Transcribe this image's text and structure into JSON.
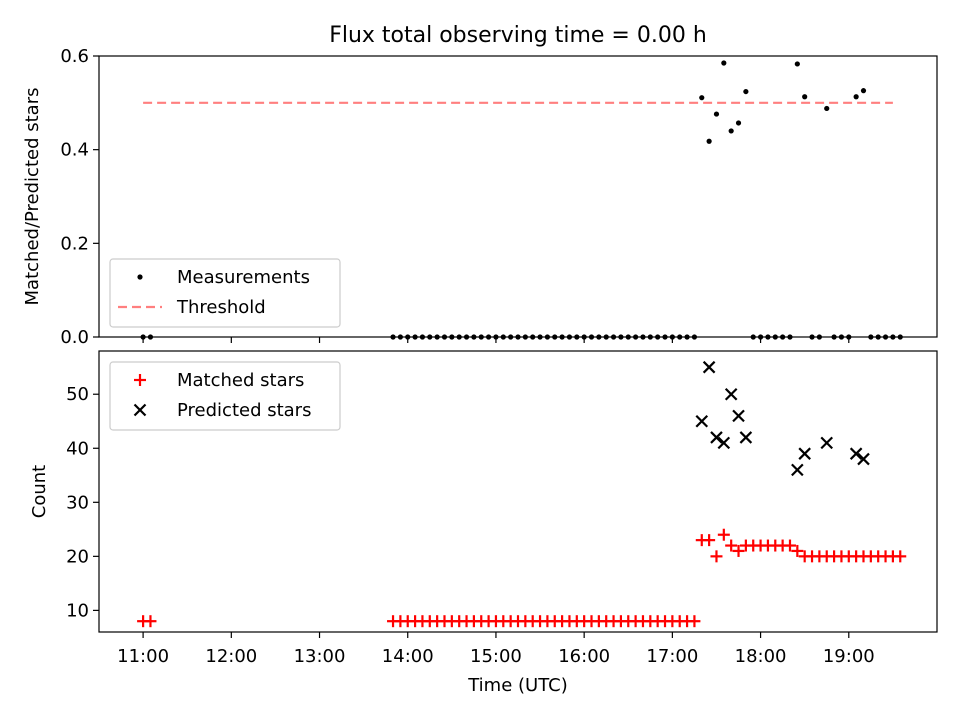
{
  "chart_data": [
    {
      "type": "scatter",
      "title": "Flux total observing time = 0.00 h",
      "ylabel": "Matched/Predicted stars",
      "xlabel": "",
      "xlim": [
        "10:30",
        "20:00"
      ],
      "ylim": [
        0,
        0.6
      ],
      "yticks": [
        "0.0",
        "0.2",
        "0.4",
        "0.6"
      ],
      "grid": false,
      "legend_position": "lower-left",
      "series": [
        {
          "name": "Measurements",
          "marker": "dot",
          "color": "#000000",
          "points": [
            [
              "11:00",
              0
            ],
            [
              "11:05",
              0
            ],
            [
              "13:50",
              0
            ],
            [
              "13:55",
              0
            ],
            [
              "14:00",
              0
            ],
            [
              "14:05",
              0
            ],
            [
              "14:10",
              0
            ],
            [
              "14:15",
              0
            ],
            [
              "14:20",
              0
            ],
            [
              "14:25",
              0
            ],
            [
              "14:30",
              0
            ],
            [
              "14:35",
              0
            ],
            [
              "14:40",
              0
            ],
            [
              "14:45",
              0
            ],
            [
              "14:50",
              0
            ],
            [
              "14:55",
              0
            ],
            [
              "15:00",
              0
            ],
            [
              "15:05",
              0
            ],
            [
              "15:10",
              0
            ],
            [
              "15:15",
              0
            ],
            [
              "15:20",
              0
            ],
            [
              "15:25",
              0
            ],
            [
              "15:30",
              0
            ],
            [
              "15:35",
              0
            ],
            [
              "15:40",
              0
            ],
            [
              "15:45",
              0
            ],
            [
              "15:50",
              0
            ],
            [
              "15:55",
              0
            ],
            [
              "16:00",
              0
            ],
            [
              "16:05",
              0
            ],
            [
              "16:10",
              0
            ],
            [
              "16:15",
              0
            ],
            [
              "16:20",
              0
            ],
            [
              "16:25",
              0
            ],
            [
              "16:30",
              0
            ],
            [
              "16:35",
              0
            ],
            [
              "16:40",
              0
            ],
            [
              "16:45",
              0
            ],
            [
              "16:50",
              0
            ],
            [
              "16:55",
              0
            ],
            [
              "17:00",
              0
            ],
            [
              "17:05",
              0
            ],
            [
              "17:10",
              0
            ],
            [
              "17:15",
              0
            ],
            [
              "17:20",
              0.511
            ],
            [
              "17:25",
              0.418
            ],
            [
              "17:30",
              0.476
            ],
            [
              "17:35",
              0.585
            ],
            [
              "17:40",
              0.44
            ],
            [
              "17:45",
              0.457
            ],
            [
              "17:50",
              0.524
            ],
            [
              "17:55",
              0
            ],
            [
              "18:00",
              0
            ],
            [
              "18:05",
              0
            ],
            [
              "18:10",
              0
            ],
            [
              "18:15",
              0
            ],
            [
              "18:20",
              0
            ],
            [
              "18:25",
              0.583
            ],
            [
              "18:30",
              0.513
            ],
            [
              "18:35",
              0
            ],
            [
              "18:40",
              0
            ],
            [
              "18:45",
              0.488
            ],
            [
              "18:50",
              0
            ],
            [
              "18:55",
              0
            ],
            [
              "19:00",
              0
            ],
            [
              "19:05",
              0.513
            ],
            [
              "19:10",
              0.526
            ],
            [
              "19:15",
              0
            ],
            [
              "19:20",
              0
            ],
            [
              "19:25",
              0
            ],
            [
              "19:30",
              0
            ],
            [
              "19:35",
              0
            ]
          ]
        },
        {
          "name": "Threshold",
          "marker": "dashed-line",
          "color": "#ff7f7f",
          "points": [
            [
              "11:00",
              0.5
            ],
            [
              "19:30",
              0.5
            ]
          ]
        }
      ]
    },
    {
      "type": "scatter",
      "title": "",
      "ylabel": "Count",
      "xlabel": "Time (UTC)",
      "xlim": [
        "10:30",
        "20:00"
      ],
      "ylim": [
        6,
        58
      ],
      "yticks": [
        "10",
        "20",
        "30",
        "40",
        "50"
      ],
      "xticks": [
        "11:00",
        "12:00",
        "13:00",
        "14:00",
        "15:00",
        "16:00",
        "17:00",
        "18:00",
        "19:00"
      ],
      "grid": false,
      "legend_position": "top-left",
      "series": [
        {
          "name": "Matched stars",
          "marker": "plus",
          "color": "#ff0000",
          "points": [
            [
              "11:00",
              8
            ],
            [
              "11:05",
              8
            ],
            [
              "13:50",
              8
            ],
            [
              "13:55",
              8
            ],
            [
              "14:00",
              8
            ],
            [
              "14:05",
              8
            ],
            [
              "14:10",
              8
            ],
            [
              "14:15",
              8
            ],
            [
              "14:20",
              8
            ],
            [
              "14:25",
              8
            ],
            [
              "14:30",
              8
            ],
            [
              "14:35",
              8
            ],
            [
              "14:40",
              8
            ],
            [
              "14:45",
              8
            ],
            [
              "14:50",
              8
            ],
            [
              "14:55",
              8
            ],
            [
              "15:00",
              8
            ],
            [
              "15:05",
              8
            ],
            [
              "15:10",
              8
            ],
            [
              "15:15",
              8
            ],
            [
              "15:20",
              8
            ],
            [
              "15:25",
              8
            ],
            [
              "15:30",
              8
            ],
            [
              "15:35",
              8
            ],
            [
              "15:40",
              8
            ],
            [
              "15:45",
              8
            ],
            [
              "15:50",
              8
            ],
            [
              "15:55",
              8
            ],
            [
              "16:00",
              8
            ],
            [
              "16:05",
              8
            ],
            [
              "16:10",
              8
            ],
            [
              "16:15",
              8
            ],
            [
              "16:20",
              8
            ],
            [
              "16:25",
              8
            ],
            [
              "16:30",
              8
            ],
            [
              "16:35",
              8
            ],
            [
              "16:40",
              8
            ],
            [
              "16:45",
              8
            ],
            [
              "16:50",
              8
            ],
            [
              "16:55",
              8
            ],
            [
              "17:00",
              8
            ],
            [
              "17:05",
              8
            ],
            [
              "17:10",
              8
            ],
            [
              "17:15",
              8
            ],
            [
              "17:20",
              23
            ],
            [
              "17:25",
              23
            ],
            [
              "17:30",
              20
            ],
            [
              "17:35",
              24
            ],
            [
              "17:40",
              22
            ],
            [
              "17:45",
              21
            ],
            [
              "17:50",
              22
            ],
            [
              "17:55",
              22
            ],
            [
              "18:00",
              22
            ],
            [
              "18:05",
              22
            ],
            [
              "18:10",
              22
            ],
            [
              "18:15",
              22
            ],
            [
              "18:20",
              22
            ],
            [
              "18:25",
              21
            ],
            [
              "18:30",
              20
            ],
            [
              "18:35",
              20
            ],
            [
              "18:40",
              20
            ],
            [
              "18:45",
              20
            ],
            [
              "18:50",
              20
            ],
            [
              "18:55",
              20
            ],
            [
              "19:00",
              20
            ],
            [
              "19:05",
              20
            ],
            [
              "19:10",
              20
            ],
            [
              "19:15",
              20
            ],
            [
              "19:20",
              20
            ],
            [
              "19:25",
              20
            ],
            [
              "19:30",
              20
            ],
            [
              "19:35",
              20
            ]
          ]
        },
        {
          "name": "Predicted stars",
          "marker": "x",
          "color": "#000000",
          "points": [
            [
              "17:20",
              45
            ],
            [
              "17:25",
              55
            ],
            [
              "17:30",
              42
            ],
            [
              "17:35",
              41
            ],
            [
              "17:40",
              50
            ],
            [
              "17:45",
              46
            ],
            [
              "17:50",
              42
            ],
            [
              "18:25",
              36
            ],
            [
              "18:30",
              39
            ],
            [
              "18:45",
              41
            ],
            [
              "19:05",
              39
            ],
            [
              "19:10",
              38
            ]
          ]
        }
      ]
    }
  ]
}
